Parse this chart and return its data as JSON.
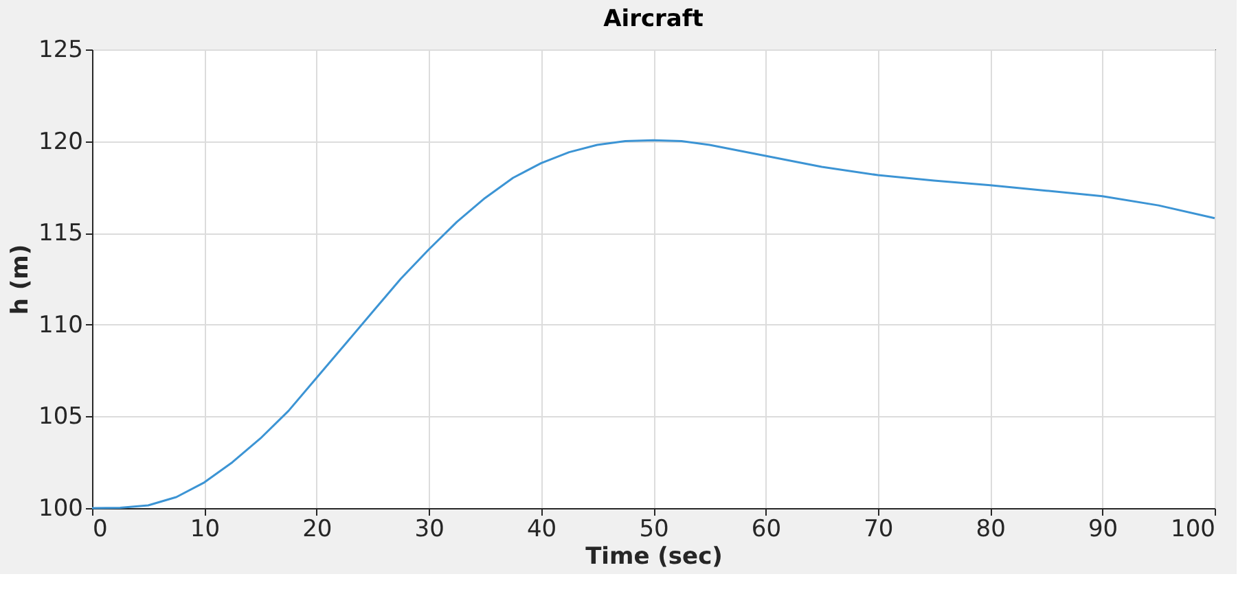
{
  "chart_data": {
    "type": "line",
    "title": "Aircraft",
    "xlabel": "Time (sec)",
    "ylabel": "h (m)",
    "x": [
      0,
      2.5,
      5,
      7.5,
      10,
      12.5,
      15,
      17.5,
      20,
      22.5,
      25,
      27.5,
      30,
      32.5,
      35,
      37.5,
      40,
      42.5,
      45,
      47.5,
      50,
      52.5,
      55,
      60,
      65,
      70,
      75,
      80,
      85,
      90,
      95,
      100
    ],
    "series": [
      {
        "color": "#3c94d4",
        "values": [
          100,
          100.02,
          100.15,
          100.6,
          101.4,
          102.5,
          103.8,
          105.3,
          107.1,
          108.9,
          110.7,
          112.5,
          114.1,
          115.6,
          116.9,
          118.0,
          118.8,
          119.4,
          119.8,
          120.0,
          120.05,
          120.0,
          119.8,
          119.2,
          118.6,
          118.15,
          117.85,
          117.6,
          117.3,
          117.0,
          116.5,
          115.8
        ]
      }
    ],
    "xlim": [
      0,
      100
    ],
    "ylim": [
      100,
      125
    ],
    "xticks": [
      0,
      10,
      20,
      30,
      40,
      50,
      60,
      70,
      80,
      90,
      100
    ],
    "yticks": [
      100,
      105,
      110,
      115,
      120,
      125
    ],
    "grid": true,
    "line_style": "solid",
    "marker": "none"
  }
}
